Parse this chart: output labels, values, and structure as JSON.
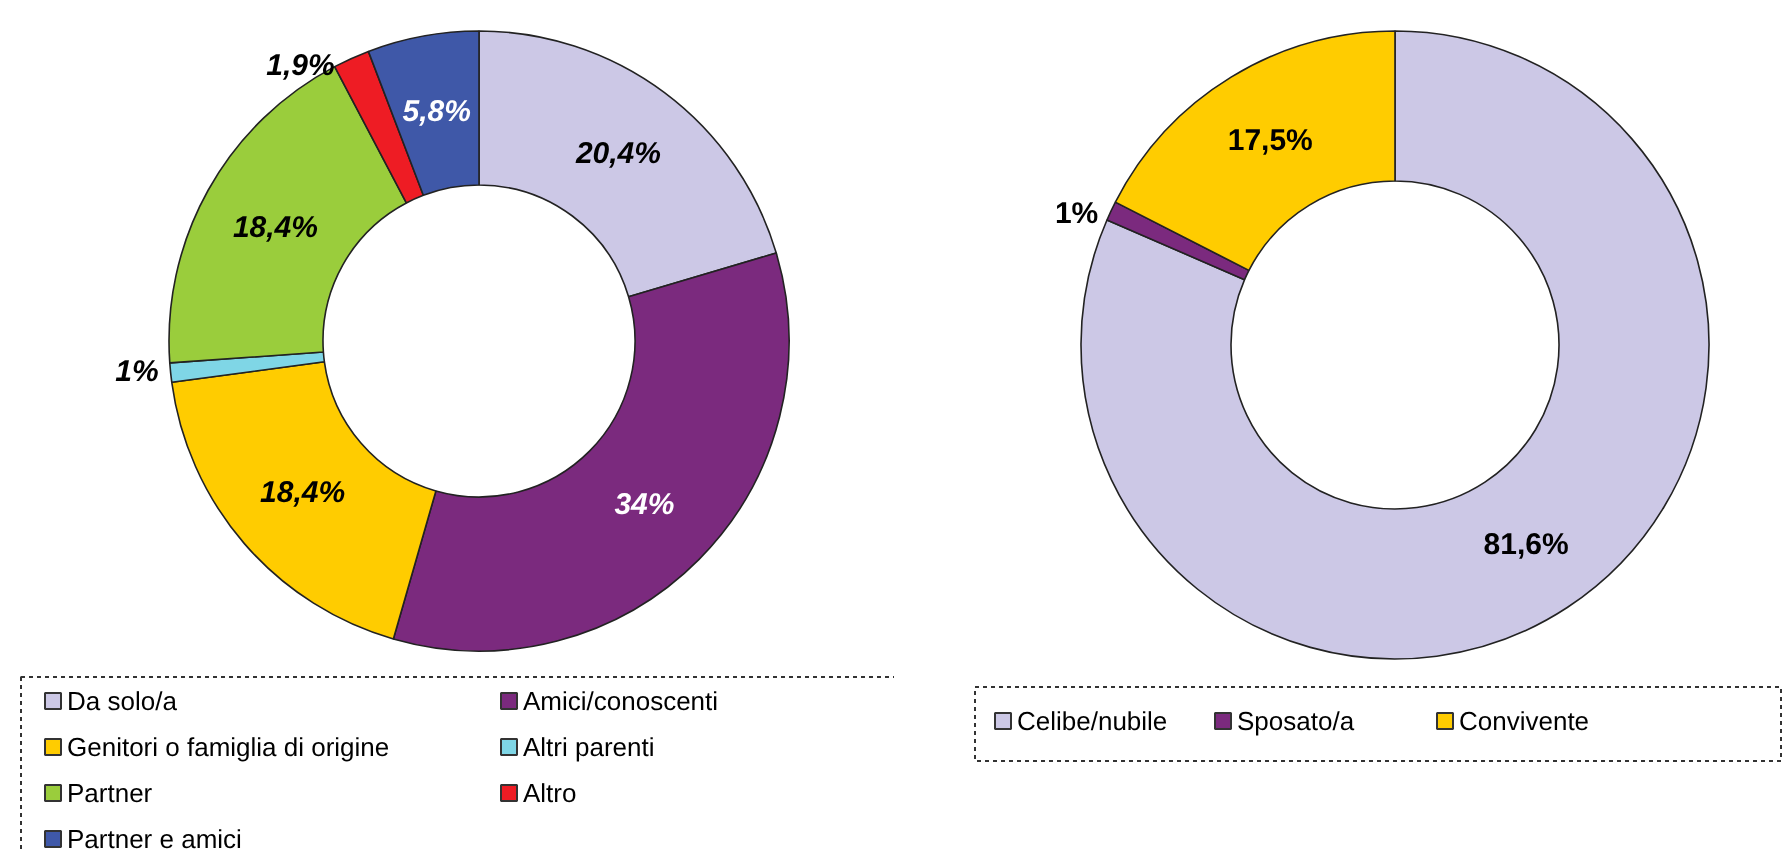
{
  "chart_data": [
    {
      "type": "donut",
      "categories": [
        "Da solo/a",
        "Amici/conoscenti",
        "Genitori o famiglia di origine",
        "Altri parenti",
        "Partner",
        "Altro",
        "Partner e amici"
      ],
      "values": [
        20.4,
        34,
        18.4,
        1,
        18.4,
        1.9,
        5.8
      ],
      "value_labels": [
        "20,4%",
        "34%",
        "18,4%",
        "1%",
        "18,4%",
        "1,9%",
        "5,8%"
      ],
      "colors": [
        "#ccc8e6",
        "#7b2a7e",
        "#ffcc00",
        "#7fd6e6",
        "#9acd3c",
        "#ee1c24",
        "#3f58a8"
      ],
      "legend": "bottom"
    },
    {
      "type": "donut",
      "categories": [
        "Celibe/nubile",
        "Sposato/a",
        "Convivente"
      ],
      "values": [
        81.6,
        1,
        17.5
      ],
      "value_labels": [
        "81,6%",
        "1%",
        "17,5%"
      ],
      "colors": [
        "#ccc8e6",
        "#7b2a7e",
        "#ffcc00"
      ],
      "legend": "bottom"
    }
  ]
}
